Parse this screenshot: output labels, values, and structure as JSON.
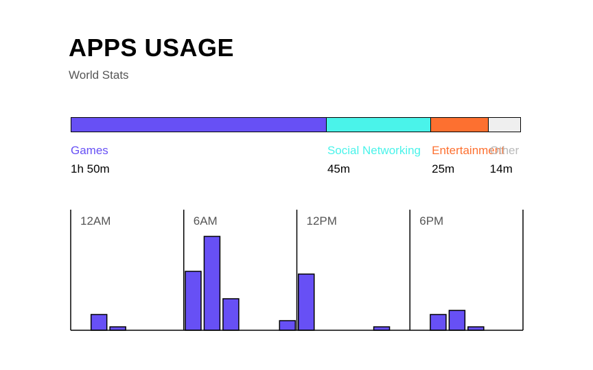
{
  "header": {
    "title": "APPS USAGE",
    "subtitle": "World Stats"
  },
  "categories": [
    {
      "name": "Games",
      "time": "1h 50m",
      "minutes": 110,
      "color": "#6750f5"
    },
    {
      "name": "Social Networking",
      "time": "45m",
      "minutes": 45,
      "color": "#4af3ea"
    },
    {
      "name": "Entertainment",
      "time": "25m",
      "minutes": 25,
      "color": "#fd7030"
    },
    {
      "name": "Other",
      "time": "14m",
      "minutes": 14,
      "color": "#efefef",
      "label_color": "#b9b9b9"
    }
  ],
  "chart_data": [
    {
      "type": "bar",
      "title": "APPS USAGE",
      "subtitle": "World Stats",
      "categories": [
        "Games",
        "Social Networking",
        "Entertainment",
        "Other"
      ],
      "values": [
        110,
        45,
        25,
        14
      ],
      "value_labels": [
        "1h 50m",
        "45m",
        "25m",
        "14m"
      ],
      "orientation": "horizontal-stacked",
      "colors": [
        "#6750f5",
        "#4af3ea",
        "#fd7030",
        "#efefef"
      ]
    },
    {
      "type": "bar",
      "x_tick_labels": [
        "12AM",
        "6AM",
        "12PM",
        "6PM"
      ],
      "x_tick_hours": [
        0,
        6,
        12,
        18
      ],
      "x": [
        1,
        2,
        6,
        7,
        8,
        11,
        12,
        16,
        19,
        20,
        21
      ],
      "values": [
        23,
        5,
        86,
        137,
        46,
        14,
        82,
        5,
        23,
        29,
        5
      ],
      "ylim": [
        0,
        140
      ],
      "color": "#6750f5",
      "grid": false
    }
  ]
}
